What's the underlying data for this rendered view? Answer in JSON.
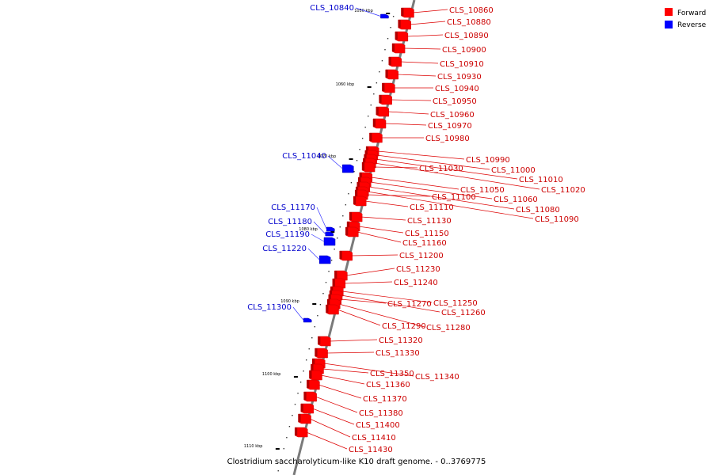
{
  "legend": [
    {
      "label": "Forward",
      "color": "#ff0000"
    },
    {
      "label": "Reverse",
      "color": "#0000ff"
    }
  ],
  "caption": "Clostridium saccharolyticum-like K10 draft genome. - 0..3769775",
  "scale_marks": [
    "1050 kbp",
    "1060 kbp",
    "1070 kbp",
    "1080 kbp",
    "1090 kbp",
    "1100 kbp",
    "1110 kbp"
  ],
  "forward_genes": [
    "CLS_10860",
    "CLS_10880",
    "CLS_10890",
    "CLS_10900",
    "CLS_10910",
    "CLS_10930",
    "CLS_10940",
    "CLS_10950",
    "CLS_10960",
    "CLS_10970",
    "CLS_10980",
    "CLS_10990",
    "CLS_11000",
    "CLS_11010",
    "CLS_11020",
    "CLS_11030",
    "CLS_11050",
    "CLS_11060",
    "CLS_11080",
    "CLS_11090",
    "CLS_11100",
    "CLS_11110",
    "CLS_11130",
    "CLS_11150",
    "CLS_11160",
    "CLS_11200",
    "CLS_11230",
    "CLS_11240",
    "CLS_11250",
    "CLS_11260",
    "CLS_11270",
    "CLS_11280",
    "CLS_11290",
    "CLS_11320",
    "CLS_11330",
    "CLS_11340",
    "CLS_11350",
    "CLS_11360",
    "CLS_11370",
    "CLS_11380",
    "CLS_11400",
    "CLS_11410",
    "CLS_11430"
  ],
  "reverse_genes": [
    "CLS_10840",
    "CLS_11040",
    "CLS_11170",
    "CLS_11180",
    "CLS_11190",
    "CLS_11220",
    "CLS_11300"
  ],
  "colors": {
    "forward": "#ff0000",
    "reverse": "#0000ff",
    "backbone": "#808080"
  }
}
